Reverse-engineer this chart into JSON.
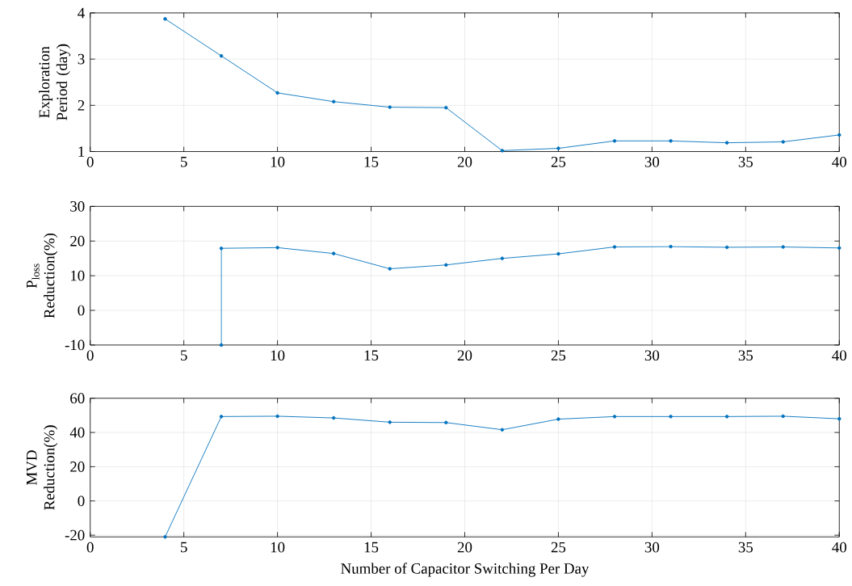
{
  "chart_data": [
    {
      "type": "line",
      "ylabel": "Exploration Period (day)",
      "x": [
        4,
        7,
        10,
        13,
        16,
        19,
        22,
        25,
        28,
        31,
        34,
        37,
        40
      ],
      "series": [
        {
          "color": "#0072bd",
          "values": [
            3.87,
            3.07,
            2.27,
            2.08,
            1.96,
            1.95,
            1.02,
            1.07,
            1.23,
            1.23,
            1.19,
            1.21,
            1.36
          ]
        }
      ],
      "xlim": [
        0,
        40
      ],
      "xticks": [
        0,
        5,
        10,
        15,
        20,
        25,
        30,
        35,
        40
      ],
      "ylim": [
        1,
        4
      ],
      "yticks": [
        1,
        2,
        3,
        4
      ],
      "grid": true,
      "marker": "circle"
    },
    {
      "type": "line",
      "ylabel": "P$_{loss}$ Reduction(%)",
      "x": [
        7,
        7,
        10,
        13,
        16,
        19,
        22,
        25,
        28,
        31,
        34,
        37,
        40
      ],
      "series": [
        {
          "color": "#0072bd",
          "values": [
            -10,
            17.9,
            18.1,
            16.4,
            12.0,
            13.1,
            15.0,
            16.3,
            18.3,
            18.4,
            18.2,
            18.3,
            18.0
          ]
        }
      ],
      "xlim": [
        0,
        40
      ],
      "xticks": [
        0,
        5,
        10,
        15,
        20,
        25,
        30,
        35,
        40
      ],
      "ylim": [
        -10,
        30
      ],
      "yticks": [
        -10,
        0,
        10,
        20,
        30
      ],
      "grid": true,
      "marker": "circle"
    },
    {
      "type": "line",
      "xlabel": "Number of Capacitor Switching Per Day",
      "ylabel": "MVD Reduction(%)",
      "x": [
        4,
        7,
        10,
        13,
        16,
        19,
        22,
        25,
        28,
        31,
        34,
        37,
        40
      ],
      "series": [
        {
          "color": "#0072bd",
          "values": [
            -21,
            49.3,
            49.5,
            48.5,
            46.0,
            45.8,
            41.6,
            47.8,
            49.3,
            49.3,
            49.3,
            49.5,
            48.0
          ]
        }
      ],
      "xlim": [
        0,
        40
      ],
      "xticks": [
        0,
        5,
        10,
        15,
        20,
        25,
        30,
        35,
        40
      ],
      "ylim": [
        -21,
        60
      ],
      "yticks": [
        -20,
        0,
        20,
        40,
        60
      ],
      "grid": true,
      "marker": "circle"
    }
  ]
}
